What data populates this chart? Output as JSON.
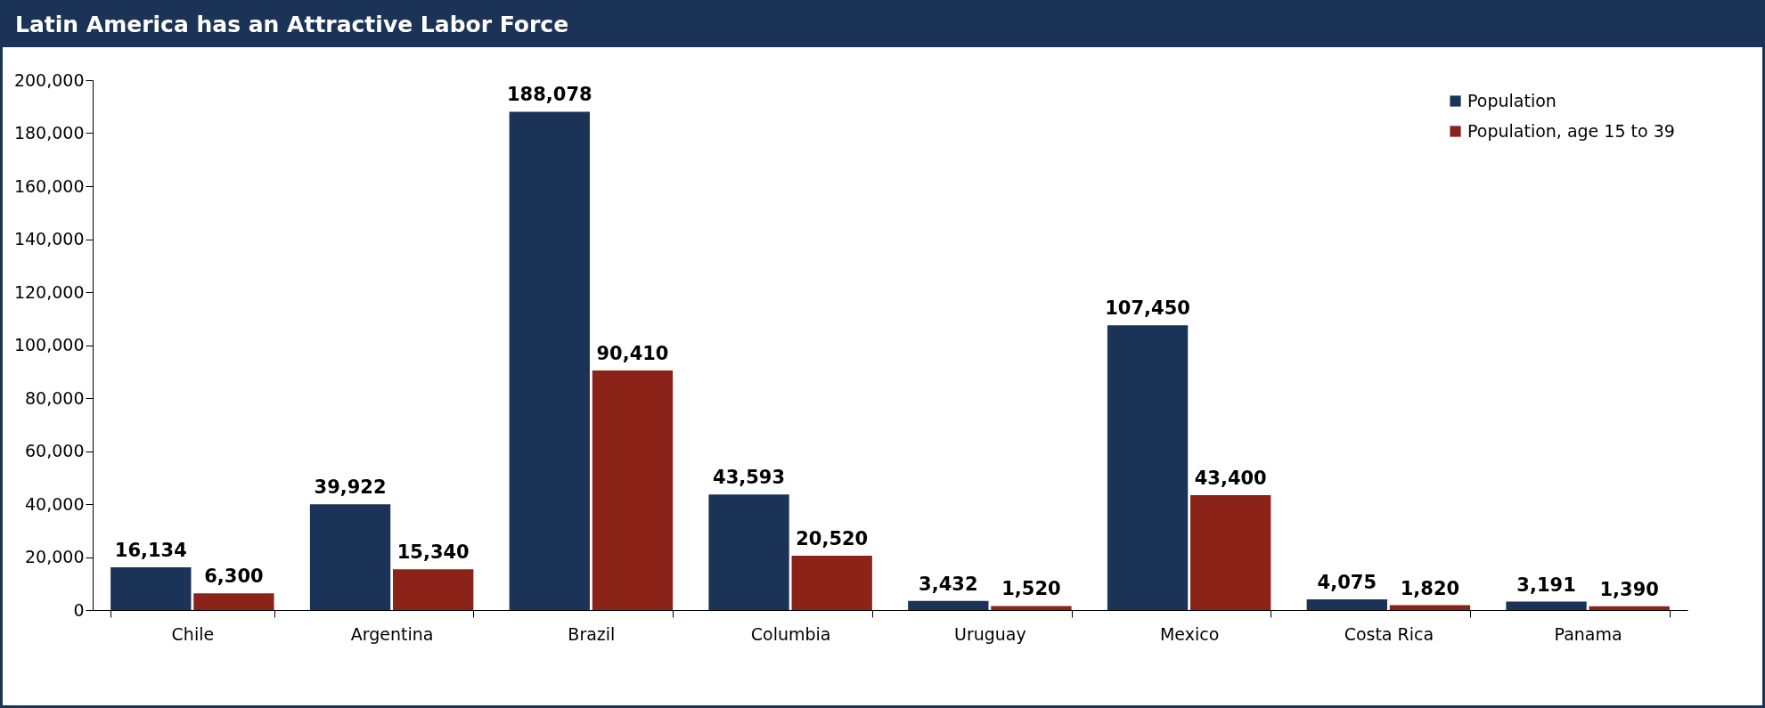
{
  "chart_data": {
    "type": "bar",
    "title": "Latin America has an Attractive Labor Force",
    "categories": [
      "Chile",
      "Argentina",
      "Brazil",
      "Columbia",
      "Uruguay",
      "Mexico",
      "Costa Rica",
      "Panama"
    ],
    "series": [
      {
        "name": "Population",
        "color": "#1c3358",
        "values": [
          16134,
          39922,
          188078,
          43593,
          3432,
          107450,
          4075,
          3191
        ],
        "value_labels": [
          "16,134",
          "39,922",
          "188,078",
          "43,593",
          "3,432",
          "107,450",
          "4,075",
          "3,191"
        ]
      },
      {
        "name": "Population, age 15 to 39",
        "color": "#8b2318",
        "values": [
          6300,
          15340,
          90410,
          20520,
          1520,
          43400,
          1820,
          1390
        ],
        "value_labels": [
          "6,300",
          "15,340",
          "90,410",
          "20,520",
          "1,520",
          "43,400",
          "1,820",
          "1,390"
        ]
      }
    ],
    "ylim": [
      0,
      200000
    ],
    "yticks": [
      0,
      {
        "value": 20000,
        "label": "20,000"
      },
      {
        "value": 40000,
        "label": "40,000"
      },
      {
        "value": 60000,
        "label": "60,000"
      },
      {
        "value": 80000,
        "label": "80,000"
      },
      {
        "value": 100000,
        "label": "100,000"
      },
      {
        "value": 120000,
        "label": "120,000"
      },
      {
        "value": 140000,
        "label": "140,000"
      },
      {
        "value": 160000,
        "label": "160,000"
      },
      {
        "value": 180000,
        "label": "180,000"
      },
      {
        "value": 200000,
        "label": "200,000"
      }
    ],
    "grid": false,
    "legend": "top right"
  }
}
